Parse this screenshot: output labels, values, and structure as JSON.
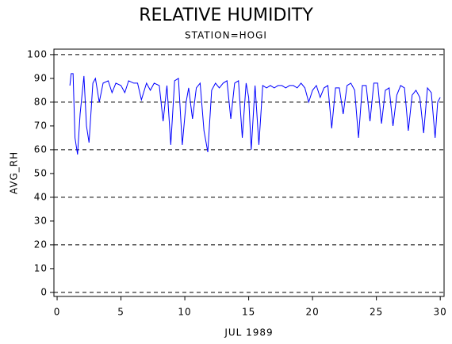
{
  "chart_data": {
    "type": "line",
    "title": "RELATIVE HUMIDITY",
    "subtitle": "STATION=HOGI",
    "x_label": "JUL 1989",
    "y_label": "AVG_RH",
    "x": [
      1.0,
      1.1,
      1.25,
      1.4,
      1.6,
      1.8,
      2.1,
      2.3,
      2.5,
      2.8,
      3.0,
      3.3,
      3.6,
      4.0,
      4.3,
      4.6,
      5.0,
      5.3,
      5.6,
      6.0,
      6.3,
      6.6,
      7.0,
      7.3,
      7.6,
      8.0,
      8.3,
      8.6,
      8.9,
      9.2,
      9.5,
      9.8,
      10.1,
      10.3,
      10.6,
      10.9,
      11.2,
      11.5,
      11.8,
      12.1,
      12.4,
      12.7,
      13.0,
      13.3,
      13.6,
      13.9,
      14.2,
      14.5,
      14.8,
      15.0,
      15.2,
      15.5,
      15.8,
      16.1,
      16.4,
      16.7,
      17.0,
      17.3,
      17.6,
      17.9,
      18.2,
      18.5,
      18.8,
      19.1,
      19.4,
      19.7,
      20.0,
      20.3,
      20.6,
      20.9,
      21.2,
      21.5,
      21.8,
      22.1,
      22.4,
      22.7,
      23.0,
      23.3,
      23.6,
      23.9,
      24.2,
      24.5,
      24.8,
      25.1,
      25.4,
      25.7,
      26.0,
      26.3,
      26.6,
      26.9,
      27.2,
      27.5,
      27.8,
      28.1,
      28.4,
      28.7,
      29.0,
      29.3,
      29.6,
      29.8,
      30.0
    ],
    "series": [
      {
        "name": "AVG_RH",
        "color": "#0000ff",
        "values": [
          87,
          92,
          92,
          65,
          58,
          75,
          91,
          70,
          63,
          88,
          90,
          80,
          88,
          89,
          84,
          88,
          87,
          84,
          89,
          88,
          88,
          81,
          88,
          85,
          88,
          87,
          72,
          87,
          62,
          89,
          90,
          62,
          80,
          86,
          73,
          86,
          88,
          68,
          59,
          85,
          88,
          86,
          88,
          89,
          73,
          88,
          89,
          65,
          88,
          82,
          60,
          87,
          62,
          87,
          86,
          87,
          86,
          87,
          87,
          86,
          87,
          87,
          86,
          88,
          86,
          80,
          85,
          87,
          82,
          86,
          87,
          69,
          86,
          86,
          75,
          87,
          88,
          85,
          65,
          87,
          87,
          72,
          88,
          88,
          71,
          85,
          86,
          70,
          83,
          87,
          86,
          68,
          83,
          85,
          82,
          67,
          86,
          84,
          65,
          80,
          82
        ]
      }
    ],
    "xlim": [
      -0.25,
      30.3
    ],
    "ylim": [
      -1.7,
      102.3
    ],
    "xticks": [
      0,
      5,
      10,
      15,
      20,
      25,
      30
    ],
    "yticks": [
      0,
      10,
      20,
      30,
      40,
      50,
      60,
      70,
      80,
      90,
      100
    ],
    "ygrid": [
      0,
      20,
      40,
      60,
      80,
      100
    ]
  }
}
